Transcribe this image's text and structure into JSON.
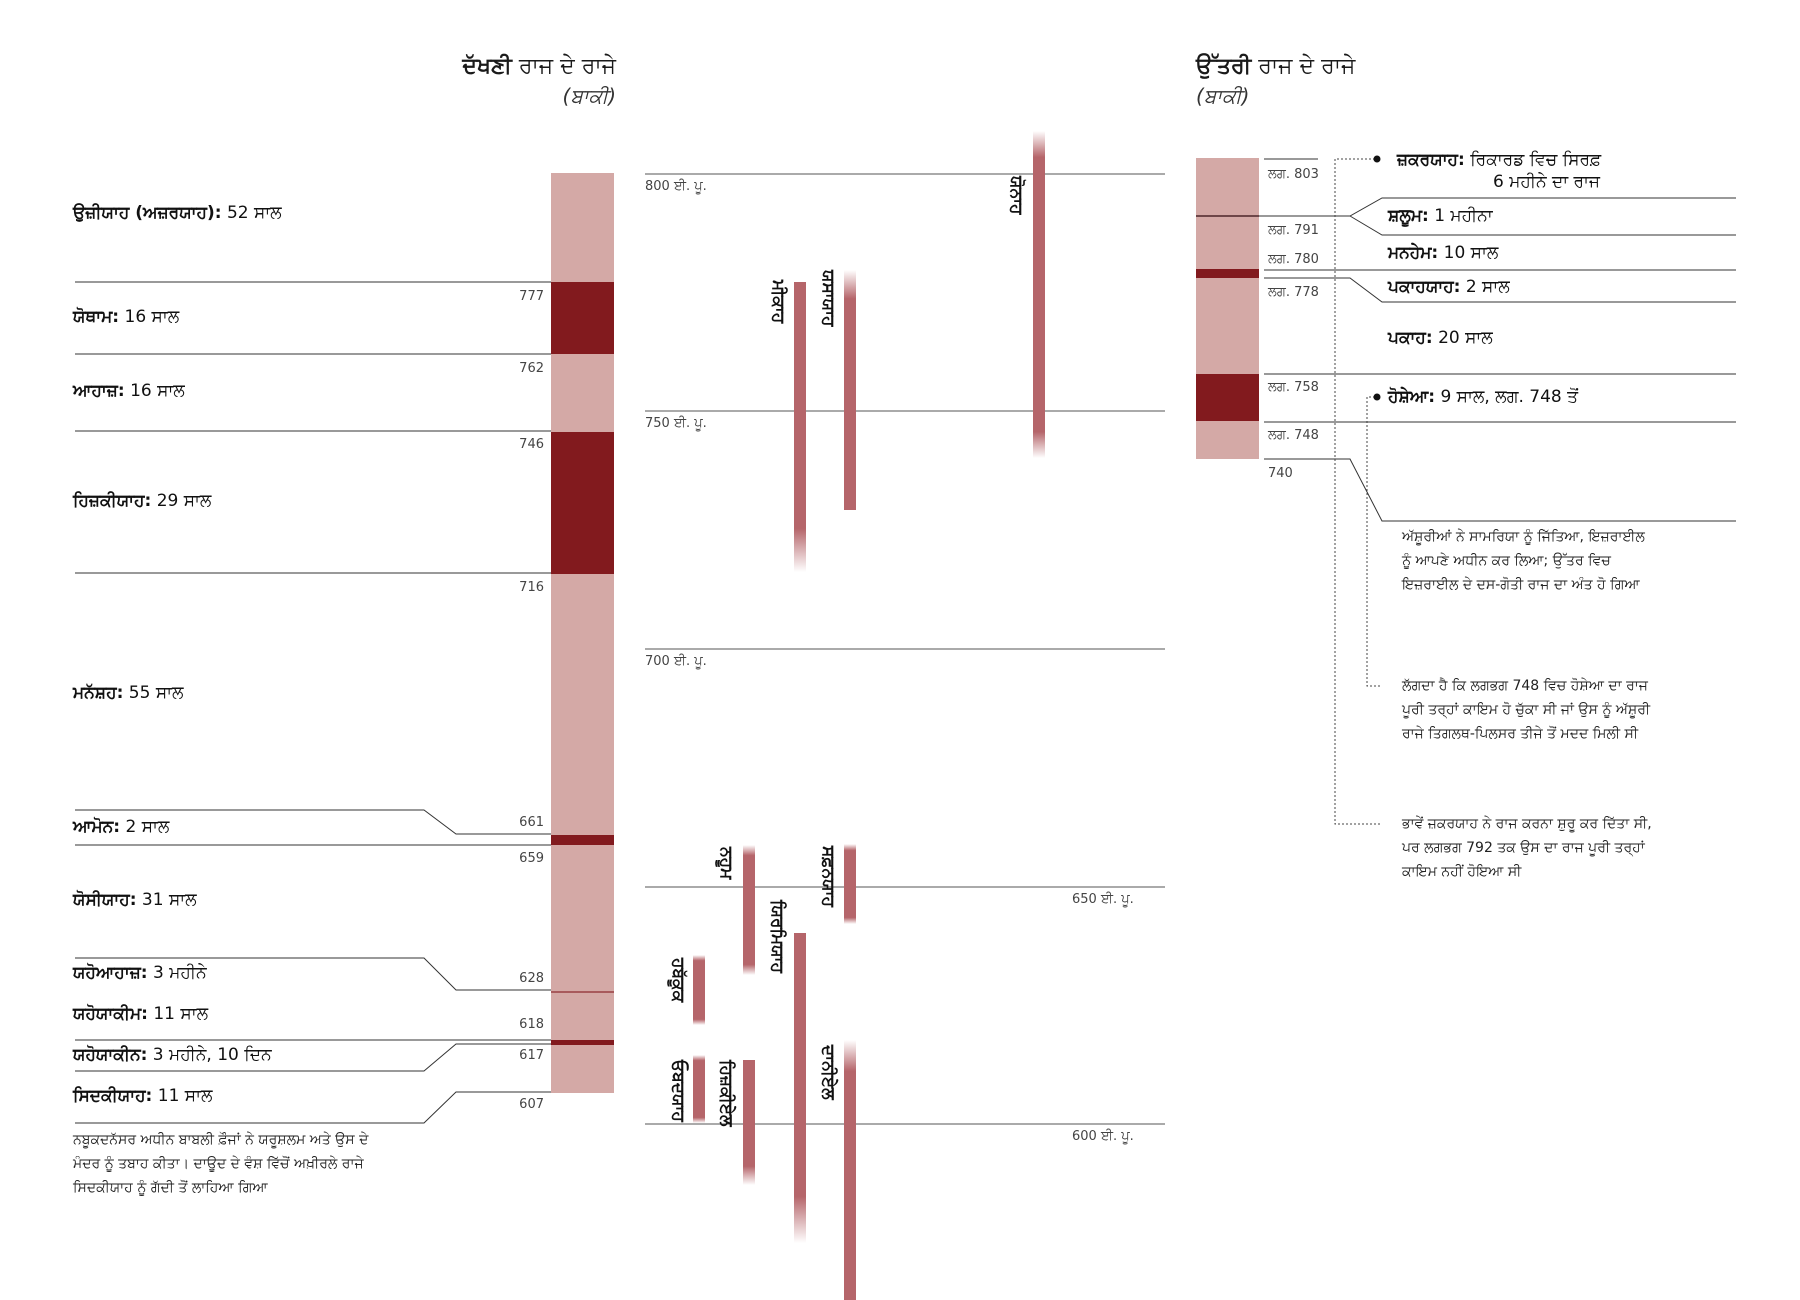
{
  "colors": {
    "light": "#d4a9a6",
    "dark": "#821a1e",
    "prophet_bar": "#b5656a",
    "line": "#333333"
  },
  "left_header": {
    "bold": "ਦੱਖਣੀ",
    "rest": " ਰਾਜ ਦੇ ਰਾਜੇ",
    "sub": "(ਬਾਕੀ)"
  },
  "right_header": {
    "bold": "ਉੱਤਰੀ",
    "rest": " ਰਾਜ ਦੇ ਰਾਜੇ",
    "sub": "(ਬਾਕੀ)"
  },
  "south_kings": [
    {
      "name": "ਉਜ਼ੀਯਾਹ (ਅਜ਼ਰਯਾਹ):",
      "reign": " 52 ਸਾਲ"
    },
    {
      "name": "ਯੋਥਾਮ:",
      "reign": " 16 ਸਾਲ"
    },
    {
      "name": "ਆਹਾਜ਼:",
      "reign": " 16 ਸਾਲ"
    },
    {
      "name": "ਹਿਜ਼ਕੀਯਾਹ:",
      "reign": " 29 ਸਾਲ"
    },
    {
      "name": "ਮਨੱਸ਼ਹ:",
      "reign": " 55 ਸਾਲ"
    },
    {
      "name": "ਆਮੋਨ:",
      "reign": " 2 ਸਾਲ"
    },
    {
      "name": "ਯੋਸੀਯਾਹ:",
      "reign": " 31 ਸਾਲ"
    },
    {
      "name": "ਯਹੋਆਹਾਜ਼:",
      "reign": " 3 ਮਹੀਨੇ"
    },
    {
      "name": "ਯਹੋਯਾਕੀਮ:",
      "reign": " 11 ਸਾਲ"
    },
    {
      "name": "ਯਹੋਯਾਕੀਨ:",
      "reign": " 3 ਮਹੀਨੇ, 10 ਦਿਨ"
    },
    {
      "name": "ਸਿਦਕੀਯਾਹ:",
      "reign": " 11 ਸਾਲ"
    }
  ],
  "south_years": [
    "777",
    "762",
    "746",
    "716",
    "661",
    "659",
    "628",
    "618",
    "617",
    "607"
  ],
  "south_note": "ਨਬੂਕਦਨੱਸਰ ਅਧੀਨ ਬਾਬਲੀ ਫ਼ੌਜਾਂ ਨੇ ਯਰੂਸ਼ਲਮ ਅਤੇ ਉਸ ਦੇ ਮੰਦਰ ਨੂੰ ਤਬਾਹ ਕੀਤਾ। ਦਾਊਦ ਦੇ ਵੰਸ਼ ਵਿੱਚੋਂ ਅਖ਼ੀਰਲੇ ਰਾਜੇ ਸਿਦਕੀਯਾਹ ਨੂੰ ਗੱਦੀ ਤੋਂ ਲਾਹਿਆ ਗਿਆ",
  "eras": [
    "800 ਈ. ਪੂ.",
    "750 ਈ. ਪੂ.",
    "700 ਈ. ਪੂ.",
    "650 ਈ. ਪੂ.",
    "600 ਈ. ਪੂ."
  ],
  "prophets": [
    "ਯੋਨਾਹ",
    "ਮੀਕਾਹ",
    "ਯਸਾਯਾਹ",
    "ਨਹੂਮ",
    "ਯਿਰਮਿਯਾਹ",
    "ਸਫ਼ਨਯਾਹ",
    "ਹਬੱਕੂਕ",
    "ਦਾਨੀਏਲ",
    "ਹਿਜ਼ਕੀਏਲ",
    "ਓਬਦਯਾਹ"
  ],
  "north_kings": [
    {
      "name": "ਜ਼ਕਰਯਾਹ:",
      "reign": " ਰਿਕਾਰਡ ਵਿਚ ਸਿਰਫ਼",
      "reign2": "6 ਮਹੀਨੇ ਦਾ ਰਾਜ"
    },
    {
      "name": "ਸ਼ਲੂਮ:",
      "reign": " 1 ਮਹੀਨਾ"
    },
    {
      "name": "ਮਨਹੇਮ:",
      "reign": " 10 ਸਾਲ"
    },
    {
      "name": "ਪਕਾਹਯਾਹ:",
      "reign": " 2 ਸਾਲ"
    },
    {
      "name": "ਪਕਾਹ:",
      "reign": " 20 ਸਾਲ"
    },
    {
      "name": "ਹੋਸ਼ੇਆ:",
      "reign": " 9 ਸਾਲ, ਲਗ. 748 ਤੋਂ"
    }
  ],
  "north_years": [
    "ਲਗ. 803",
    "ਲਗ. 791",
    "ਲਗ. 780",
    "ਲਗ. 778",
    "ਲਗ. 758",
    "ਲਗ. 748",
    "740"
  ],
  "north_notes": [
    "ਅੱਸ਼ੂਰੀਆਂ ਨੇ ਸਾਮਰਿਯਾ ਨੂੰ ਜਿੱਤਿਆ, ਇਜ਼ਰਾਈਲ ਨੂੰ ਆਪਣੇ ਅਧੀਨ ਕਰ ਲਿਆ; ਉੱਤਰ ਵਿਚ ਇਜ਼ਰਾਈਲ ਦੇ ਦਸ-ਗੋਤੀ ਰਾਜ ਦਾ ਅੰਤ ਹੋ ਗਿਆ",
    "ਲੱਗਦਾ ਹੈ ਕਿ ਲਗਭਗ 748 ਵਿਚ ਹੋਸ਼ੇਆ ਦਾ ਰਾਜ ਪੂਰੀ ਤਰ੍ਹਾਂ ਕਾਇਮ ਹੋ ਚੁੱਕਾ ਸੀ ਜਾਂ ਉਸ ਨੂੰ ਅੱਸ਼ੂਰੀ ਰਾਜੇ ਤਿਗਲਥ-ਪਿਲਸਰ ਤੀਜੇ ਤੋਂ ਮਦਦ ਮਿਲੀ ਸੀ",
    "ਭਾਵੇਂ ਜ਼ਕਰਯਾਹ ਨੇ ਰਾਜ ਕਰਨਾ ਸ਼ੁਰੂ ਕਰ ਦਿੱਤਾ ਸੀ, ਪਰ ਲਗਭਗ 792 ਤਕ ਉਸ ਦਾ ਰਾਜ ਪੂਰੀ ਤਰ੍ਹਾਂ ਕਾਇਮ ਨਹੀਂ ਹੋਇਆ ਸੀ"
  ]
}
